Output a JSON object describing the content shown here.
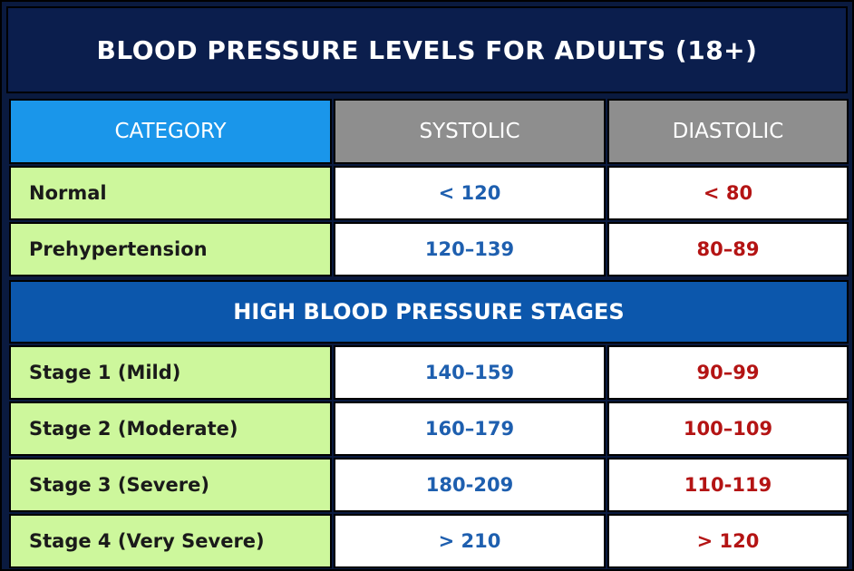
{
  "title": "BLOOD PRESSURE LEVELS FOR ADULTS (18+)",
  "headers": {
    "category": "CATEGORY",
    "systolic": "SYSTOLIC",
    "diastolic": "DIASTOLIC"
  },
  "rows_top": [
    {
      "category": "Normal",
      "systolic": "< 120",
      "diastolic": "< 80"
    },
    {
      "category": "Prehypertension",
      "systolic": "120–139",
      "diastolic": "80–89"
    }
  ],
  "section_title": "HIGH BLOOD PRESSURE STAGES",
  "rows_stages": [
    {
      "category": "Stage 1 (Mild)",
      "systolic": "140–159",
      "diastolic": "90–99"
    },
    {
      "category": "Stage 2 (Moderate)",
      "systolic": "160–179",
      "diastolic": "100–109"
    },
    {
      "category": "Stage 3 (Severe)",
      "systolic": "180-209",
      "diastolic": "110-119"
    },
    {
      "category": "Stage 4 (Very Severe)",
      "systolic": "> 210",
      "diastolic": "> 120"
    }
  ],
  "colors": {
    "background": "#0a1a3f",
    "header_category": "#1a96ea",
    "header_column": "#8e8e8e",
    "category_cell": "#cdf79c",
    "systolic_text": "#1e5faf",
    "diastolic_text": "#b41414",
    "section_bar": "#0c57ac"
  }
}
